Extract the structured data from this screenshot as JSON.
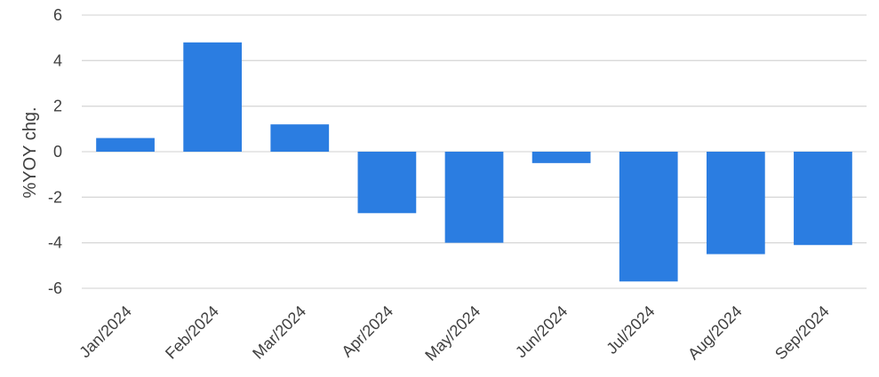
{
  "chart_data": {
    "type": "bar",
    "categories": [
      "Jan/2024",
      "Feb/2024",
      "Mar/2024",
      "Apr/2024",
      "May/2024",
      "Jun/2024",
      "Jul/2024",
      "Aug/2024",
      "Sep/2024"
    ],
    "series": [
      {
        "values": [
          0.6,
          4.8,
          1.2,
          -2.7,
          -4.0,
          -0.5,
          -5.7,
          -4.5,
          -4.1
        ]
      }
    ],
    "ylabel": "%YOY chg.",
    "ylim": [
      -6,
      6
    ],
    "yticks": [
      6,
      4,
      2,
      0,
      -2,
      -4,
      -6
    ],
    "grid": true,
    "colors": {
      "bar": "#2b7de1",
      "grid": "#d9d9d9",
      "text": "#404040"
    }
  }
}
